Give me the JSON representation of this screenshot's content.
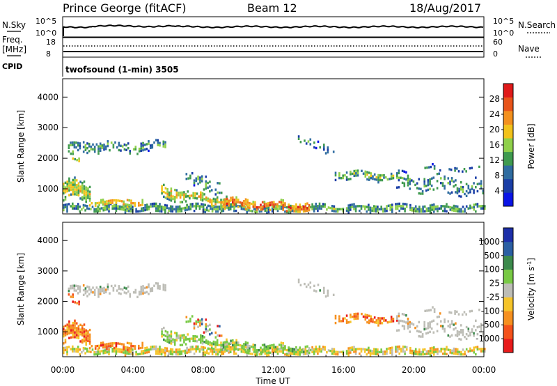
{
  "header": {
    "station": "Prince George (fitACF)",
    "beam": "Beam 12",
    "date": "18/Aug/2017"
  },
  "top_panels": {
    "nsky_label": "N.Sky",
    "nsearch_label": "N.Search",
    "nsky_ticks": [
      "10^5",
      "10^0"
    ],
    "nsearch_ticks": [
      "10^5",
      "10^0"
    ],
    "freq_label_1": "Freq.",
    "freq_label_2": "[MHz]",
    "freq_ticks": [
      "18",
      "8"
    ],
    "nave_label": "Nave",
    "nave_ticks": [
      "60",
      "0"
    ],
    "cpid_label": "CPID",
    "cpid_text": "twofsound (1-min) 3505"
  },
  "colors": {
    "power": [
      "#0a14e6",
      "#1a3ea6",
      "#2f6ca0",
      "#3f9a4f",
      "#8fd04a",
      "#f2c21b",
      "#f3901e",
      "#e8541a",
      "#e01a1a"
    ],
    "velocity": [
      "#e81b1b",
      "#f4521b",
      "#f6901f",
      "#f5c42a",
      "#bdbdb6",
      "#78c944",
      "#3c8a4c",
      "#2b5fa3",
      "#1d2fa9"
    ]
  },
  "chart_data": [
    {
      "type": "heatmap",
      "panel": "power",
      "ylabel": "Slant Range [km]",
      "yticks": [
        1000,
        2000,
        3000,
        4000
      ],
      "ylim": [
        180,
        4600
      ],
      "xlim": [
        0,
        24
      ],
      "colorbar_label": "Power [dB]",
      "colorbar_ticks": [
        4,
        8,
        12,
        16,
        20,
        24,
        28
      ],
      "colorbar_range": [
        0,
        32
      ]
    },
    {
      "type": "heatmap",
      "panel": "velocity",
      "xlabel": "Time UT",
      "ylabel": "Slant Range [km]",
      "yticks": [
        1000,
        2000,
        3000,
        4000
      ],
      "ylim": [
        180,
        4600
      ],
      "xlim": [
        0,
        24
      ],
      "xticks": [
        "00:00",
        "04:00",
        "08:00",
        "12:00",
        "16:00",
        "20:00",
        "00:00"
      ],
      "colorbar_label": "Velocity [m s^-1]",
      "colorbar_ticks": [
        "1000",
        "500",
        "100",
        "25",
        "-25",
        "-100",
        "-500",
        "-1000"
      ]
    }
  ]
}
